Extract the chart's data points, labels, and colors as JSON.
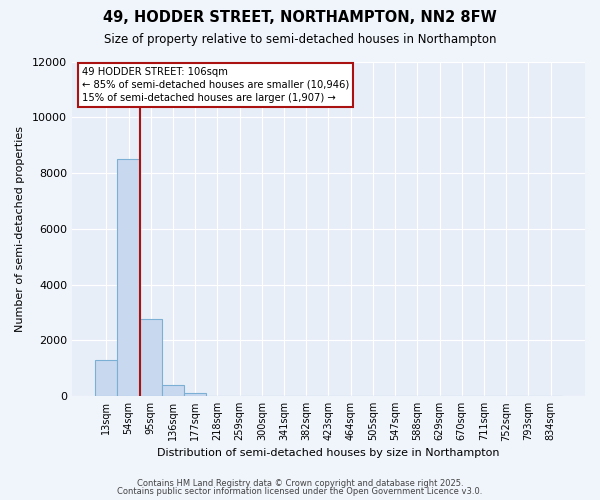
{
  "title": "49, HODDER STREET, NORTHAMPTON, NN2 8FW",
  "subtitle": "Size of property relative to semi-detached houses in Northampton",
  "xlabel": "Distribution of semi-detached houses by size in Northampton",
  "ylabel": "Number of semi-detached properties",
  "bar_values": [
    1300,
    8500,
    2750,
    400,
    100,
    0,
    0,
    0,
    0,
    0,
    0,
    0,
    0,
    0,
    0,
    0,
    0,
    0,
    0,
    0,
    0
  ],
  "categories": [
    "13sqm",
    "54sqm",
    "95sqm",
    "136sqm",
    "177sqm",
    "218sqm",
    "259sqm",
    "300sqm",
    "341sqm",
    "382sqm",
    "423sqm",
    "464sqm",
    "505sqm",
    "547sqm",
    "588sqm",
    "629sqm",
    "670sqm",
    "711sqm",
    "752sqm",
    "793sqm",
    "834sqm"
  ],
  "bar_color": "#c8d9ef",
  "bar_edge_color": "#7bafd4",
  "property_line_color": "#aa1111",
  "ylim": [
    0,
    12000
  ],
  "yticks": [
    0,
    2000,
    4000,
    6000,
    8000,
    10000,
    12000
  ],
  "annotation_title": "49 HODDER STREET: 106sqm",
  "annotation_line1": "← 85% of semi-detached houses are smaller (10,946)",
  "annotation_line2": "15% of semi-detached houses are larger (1,907) →",
  "annotation_box_color": "#ffffff",
  "annotation_box_edge_color": "#aa1111",
  "footer1": "Contains HM Land Registry data © Crown copyright and database right 2025.",
  "footer2": "Contains public sector information licensed under the Open Government Licence v3.0.",
  "bg_color": "#f0f4fb",
  "plot_bg_color": "#e8eef8",
  "grid_color": "#ffffff",
  "property_line_xindex": 1.5
}
